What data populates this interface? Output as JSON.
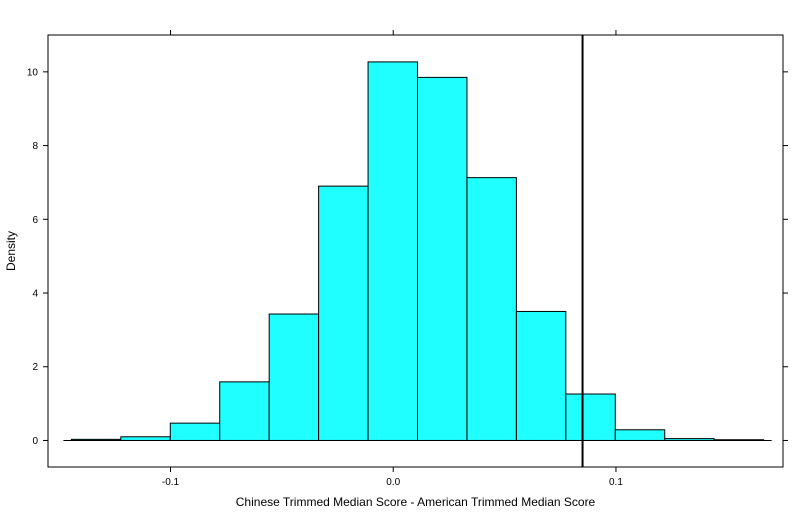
{
  "chart_data": {
    "type": "bar",
    "xlabel": "Chinese Trimmed Median Score - American Trimmed Median Score",
    "ylabel": "Density",
    "xlim": [
      -0.155,
      0.175
    ],
    "ylim": [
      -0.72,
      11.0
    ],
    "x_ticks": [
      {
        "value": -0.1,
        "label": "-0.1"
      },
      {
        "value": 0.0,
        "label": "0.0"
      },
      {
        "value": 0.1,
        "label": "0.1"
      }
    ],
    "y_ticks": [
      {
        "value": 0,
        "label": "0"
      },
      {
        "value": 2,
        "label": "2"
      },
      {
        "value": 4,
        "label": "4"
      },
      {
        "value": 6,
        "label": "6"
      },
      {
        "value": 8,
        "label": "8"
      },
      {
        "value": 10,
        "label": "10"
      }
    ],
    "bins": [
      {
        "x0": -0.1445,
        "x1": -0.1223,
        "density": 0.03
      },
      {
        "x0": -0.1223,
        "x1": -0.1001,
        "density": 0.1
      },
      {
        "x0": -0.1001,
        "x1": -0.0779,
        "density": 0.47
      },
      {
        "x0": -0.0779,
        "x1": -0.0557,
        "density": 1.59
      },
      {
        "x0": -0.0557,
        "x1": -0.0335,
        "density": 3.43
      },
      {
        "x0": -0.0335,
        "x1": -0.0113,
        "density": 6.9
      },
      {
        "x0": -0.0113,
        "x1": 0.0109,
        "density": 10.27
      },
      {
        "x0": 0.0109,
        "x1": 0.0331,
        "density": 9.85
      },
      {
        "x0": 0.0331,
        "x1": 0.0553,
        "density": 7.13
      },
      {
        "x0": 0.0553,
        "x1": 0.0775,
        "density": 3.5
      },
      {
        "x0": 0.0775,
        "x1": 0.0997,
        "density": 1.26
      },
      {
        "x0": 0.0997,
        "x1": 0.1219,
        "density": 0.29
      },
      {
        "x0": 0.1219,
        "x1": 0.1441,
        "density": 0.05
      },
      {
        "x0": 0.1441,
        "x1": 0.1663,
        "density": 0.02
      }
    ],
    "reference_line_x": 0.085,
    "bar_fill": "#1fffff",
    "bar_stroke": "#000000",
    "grid": false
  }
}
